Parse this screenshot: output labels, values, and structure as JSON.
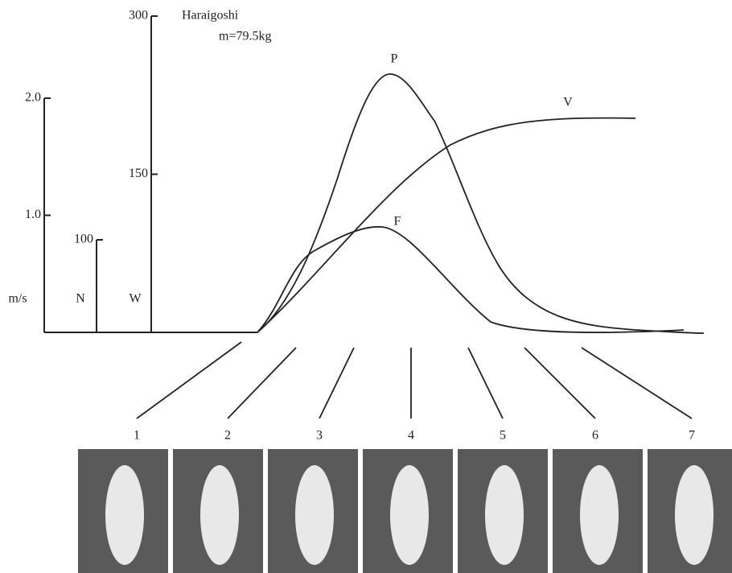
{
  "title": "Haraigoshi",
  "subtitle": "m=79.5kg",
  "axes": [
    {
      "unit": "m/s",
      "lim": [
        0,
        2
      ],
      "ticks": [
        {
          "value": 1,
          "label": "1.0"
        },
        {
          "value": 2,
          "label": "2.0"
        }
      ]
    },
    {
      "unit": "N",
      "lim": [
        0,
        100
      ],
      "ticks": [
        100
      ]
    },
    {
      "unit": "W",
      "lim": [
        0,
        300
      ],
      "ticks": [
        150,
        300
      ]
    }
  ],
  "curves": [
    "P",
    "V",
    "F"
  ],
  "frames": [
    "1",
    "2",
    "3",
    "4",
    "5",
    "6",
    "7"
  ]
}
